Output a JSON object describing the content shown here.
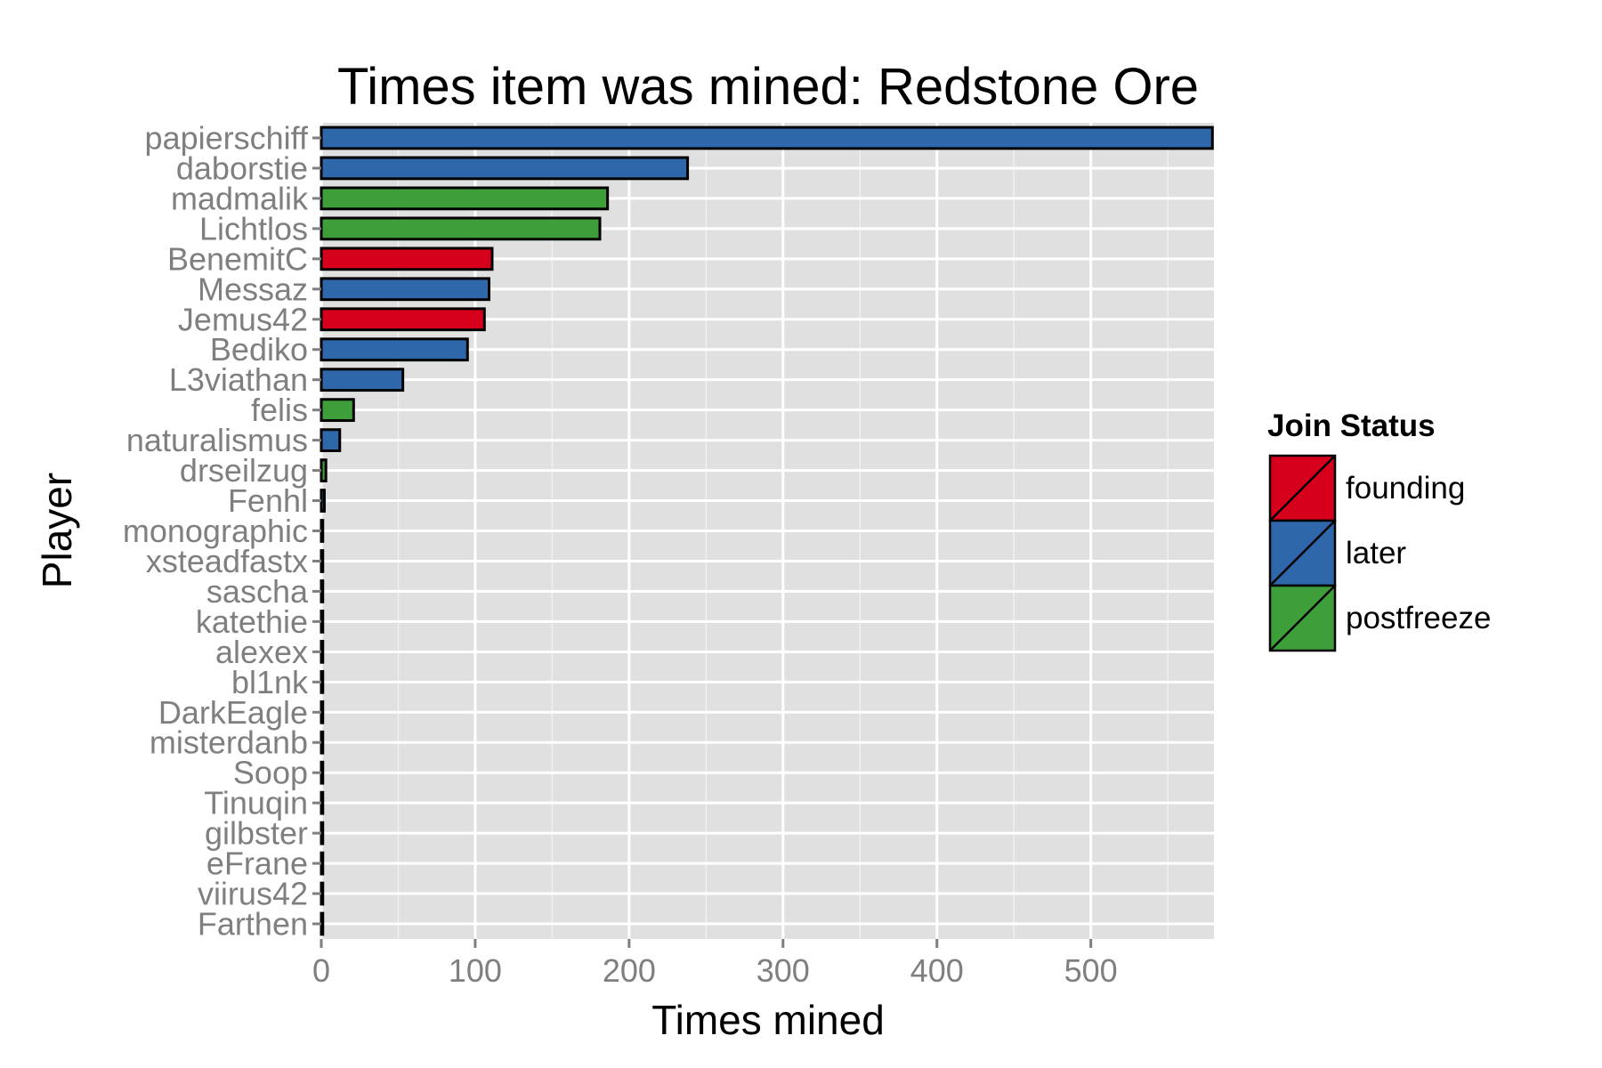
{
  "chart_data": {
    "type": "bar",
    "orientation": "horizontal",
    "title": "Times item was mined: Redstone Ore",
    "xlabel": "Times mined",
    "ylabel": "Player",
    "xlim": [
      0,
      580
    ],
    "x_ticks": [
      0,
      100,
      200,
      300,
      400,
      500
    ],
    "grid": true,
    "legend_position": "right",
    "legend": {
      "title": "Join Status",
      "items": [
        {
          "key": "founding",
          "label": "founding",
          "color": "#d7001c"
        },
        {
          "key": "later",
          "label": "later",
          "color": "#2e67aa"
        },
        {
          "key": "postfreeze",
          "label": "postfreeze",
          "color": "#3e9f3a"
        }
      ]
    },
    "categories": [
      "papierschiff",
      "daborstie",
      "madmalik",
      "Lichtlos",
      "BenemitC",
      "Messaz",
      "Jemus42",
      "Bediko",
      "L3viathan",
      "felis",
      "naturalismus",
      "drseilzug",
      "Fenhl",
      "monographic",
      "xsteadfastx",
      "sascha",
      "katethie",
      "alexex",
      "bl1nk",
      "DarkEagle",
      "misterdanb",
      "Soop",
      "Tinuqin",
      "gilbster",
      "eFrane",
      "viirus42",
      "Farthen"
    ],
    "values": [
      579,
      238,
      186,
      181,
      111,
      109,
      106,
      95,
      53,
      21,
      12,
      3,
      2,
      1,
      1,
      1,
      1,
      1,
      1,
      1,
      1,
      1,
      1,
      1,
      1,
      1,
      1
    ],
    "groups": [
      "later",
      "later",
      "postfreeze",
      "postfreeze",
      "founding",
      "later",
      "founding",
      "later",
      "later",
      "postfreeze",
      "later",
      "postfreeze",
      "later",
      "later",
      "later",
      "later",
      "later",
      "later",
      "later",
      "later",
      "later",
      "later",
      "later",
      "later",
      "later",
      "later",
      "later"
    ]
  }
}
